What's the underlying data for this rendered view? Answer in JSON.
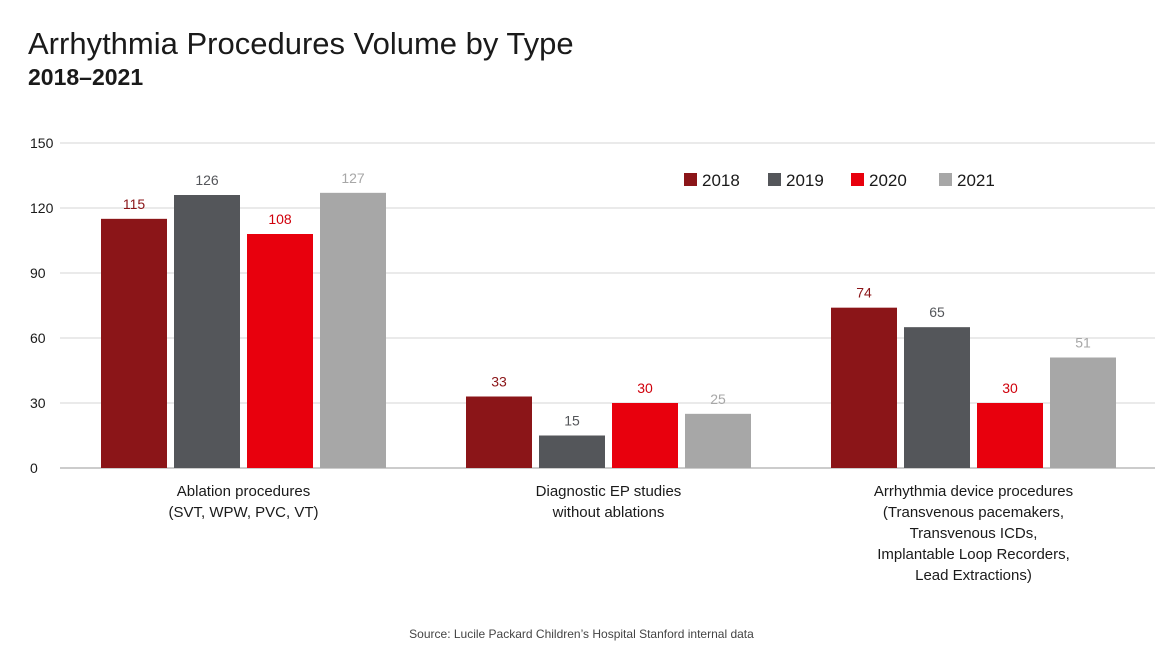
{
  "title": "Arrhythmia Procedures Volume by Type",
  "subtitle": "2018–2021",
  "source": "Source: Lucile Packard Children’s Hospital Stanford internal data",
  "chart_data": {
    "type": "bar",
    "title": "Arrhythmia Procedures Volume by Type",
    "subtitle": "2018–2021",
    "xlabel": "",
    "ylabel": "",
    "ylim": [
      0,
      150
    ],
    "yticks": [
      0,
      30,
      60,
      90,
      120,
      150
    ],
    "grid": true,
    "legend": "top-right",
    "categories": [
      [
        "Ablation procedures",
        "(SVT, WPW, PVC, VT)"
      ],
      [
        "Diagnostic EP studies",
        "without ablations"
      ],
      [
        "Arrhythmia device procedures",
        "(Transvenous pacemakers,",
        "Transvenous ICDs,",
        "Implantable Loop Recorders,",
        "Lead Extractions)"
      ]
    ],
    "series": [
      {
        "name": "2018",
        "color": "#8b1518",
        "label_color": "#8b1518",
        "values": [
          115,
          33,
          74
        ]
      },
      {
        "name": "2019",
        "color": "#54565a",
        "label_color": "#54565a",
        "values": [
          126,
          15,
          65
        ]
      },
      {
        "name": "2020",
        "color": "#e8000d",
        "label_color": "#d0000b",
        "values": [
          108,
          30,
          30
        ]
      },
      {
        "name": "2021",
        "color": "#a7a7a7",
        "label_color": "#a7a7a7",
        "values": [
          127,
          25,
          51
        ]
      }
    ]
  }
}
